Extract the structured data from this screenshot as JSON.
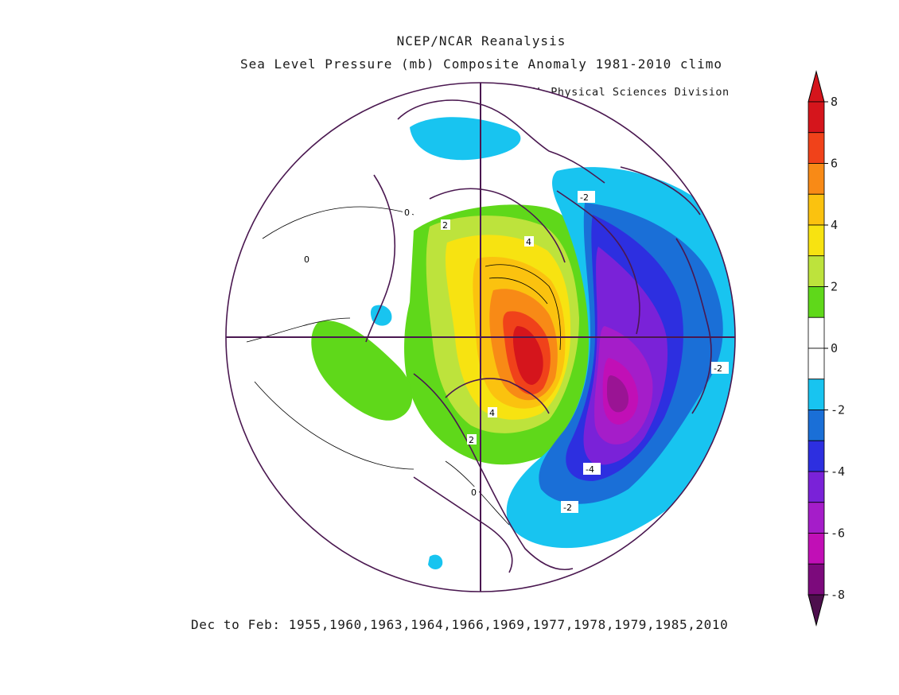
{
  "titles": {
    "line1": "NCEP/NCAR Reanalysis",
    "line2": "Sea Level Pressure (mb) Composite Anomaly 1981-2010 climo",
    "credit": "NOAA/ESRL Physical Sciences Division"
  },
  "footer": "Dec to Feb: 1955,1960,1963,1964,1966,1969,1977,1978,1979,1985,2010",
  "colorbar": {
    "ticks": [
      "8",
      "6",
      "4",
      "2",
      "0",
      "-2",
      "-4",
      "-6",
      "-8"
    ],
    "bins": [
      {
        "color": "#d5151c"
      },
      {
        "color": "#f0421a"
      },
      {
        "color": "#f88a16"
      },
      {
        "color": "#fbc20f"
      },
      {
        "color": "#f7e311"
      },
      {
        "color": "#bde33c"
      },
      {
        "color": "#5fd81a"
      },
      {
        "color": "#ffffff"
      },
      {
        "color": "#ffffff"
      },
      {
        "color": "#18c4f0"
      },
      {
        "color": "#1a6fd7"
      },
      {
        "color": "#2d2fe0"
      },
      {
        "color": "#7a22d8"
      },
      {
        "color": "#a51dc9"
      },
      {
        "color": "#c10fb6"
      },
      {
        "color": "#7c0a7c"
      }
    ],
    "top_arrow_color": "#d5151c",
    "bottom_arrow_color": "#4d0f4d"
  },
  "contour_labels": [
    {
      "id": "pos-2-top",
      "text": "2"
    },
    {
      "id": "pos-4-top",
      "text": "4"
    },
    {
      "id": "pos-4-bottom",
      "text": "4"
    },
    {
      "id": "pos-2-bottom",
      "text": "2"
    },
    {
      "id": "zero-west",
      "text": "0"
    },
    {
      "id": "zero-north",
      "text": "0"
    },
    {
      "id": "zero-south",
      "text": "0"
    },
    {
      "id": "neg-2-north",
      "text": "-2"
    },
    {
      "id": "neg-2-east",
      "text": "-2"
    },
    {
      "id": "neg-4",
      "text": "-4"
    },
    {
      "id": "neg-2-south",
      "text": "-2"
    }
  ]
}
